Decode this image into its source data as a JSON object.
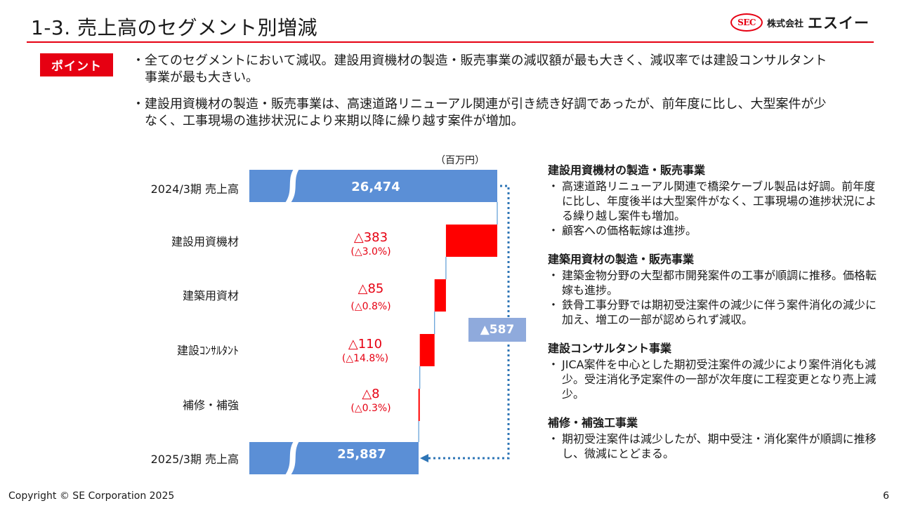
{
  "header": {
    "title": "1-3. 売上高のセグメント別増減"
  },
  "logo": {
    "mark": "SEC",
    "company_small": "株式会社",
    "company_large": "エスイー"
  },
  "point": {
    "badge": "ポイント",
    "bullets": [
      "全てのセグメントにおいて減収。建設用資機材の製造・販売事業の減収額が最も大きく、減収率では建設コンサルタント事業が最も大きい。",
      "建設用資機材の製造・販売事業は、高速道路リニューアル関連が引き続き好調であったが、前年度に比し、大型案件が少なく、工事現場の進捗状況により来期以降に繰り越す案件が増加。"
    ]
  },
  "chart_data": {
    "type": "bar",
    "unit": "（百万円）",
    "categories": [
      "2024/3期 売上高",
      "建設用資機材",
      "建築用資材",
      "建設コンサルタント",
      "補修・補強",
      "2025/3期 売上高"
    ],
    "start_total": {
      "label": "2024/3期 売上高",
      "value": 26474,
      "display": "26,474"
    },
    "end_total": {
      "label": "2025/3期 売上高",
      "value": 25887,
      "display": "25,887"
    },
    "changes": [
      {
        "label": "建設用資機材",
        "value": -383,
        "display": "△383",
        "pct": "(△3.0%)"
      },
      {
        "label": "建築用資材",
        "value": -85,
        "display": "△85",
        "pct": "(△0.8%)"
      },
      {
        "label": "建設ｺﾝｻﾙﾀﾝﾄ",
        "value": -110,
        "display": "△110",
        "pct": "(△14.8%)"
      },
      {
        "label": "補修・補強",
        "value": -8,
        "display": "△8",
        "pct": "(△0.3%)"
      }
    ],
    "total_change": {
      "value": -587,
      "display": "▲587"
    },
    "colors": {
      "total": "#5b8fd6",
      "decrease": "#ff0000",
      "change_box": "#8faadc",
      "connector": "#2e75b6"
    }
  },
  "notes": [
    {
      "heading": "建設用資機材の製造・販売事業",
      "items": [
        "高速道路リニューアル関連で橋梁ケーブル製品は好調。前年度に比し、年度後半は大型案件がなく、工事現場の進捗状況による繰り越し案件も増加。",
        "顧客への価格転嫁は進捗。"
      ]
    },
    {
      "heading": "建築用資材の製造・販売事業",
      "items": [
        "建築金物分野の大型都市開発案件の工事が順調に推移。価格転嫁も進捗。",
        "鉄骨工事分野では期初受注案件の減少に伴う案件消化の減少に加え、増工の一部が認められず減収。"
      ]
    },
    {
      "heading": "建設コンサルタント事業",
      "items": [
        "JICA案件を中心とした期初受注案件の減少により案件消化も減少。受注消化予定案件の一部が次年度に工程変更となり売上減少。"
      ]
    },
    {
      "heading": "補修・補強工事業",
      "items": [
        "期初受注案件は減少したが、期中受注・消化案件が順調に推移し、微減にとどまる。"
      ]
    }
  ],
  "footer": {
    "copyright": "Copyright © SE Corporation 2025",
    "page": "6"
  }
}
